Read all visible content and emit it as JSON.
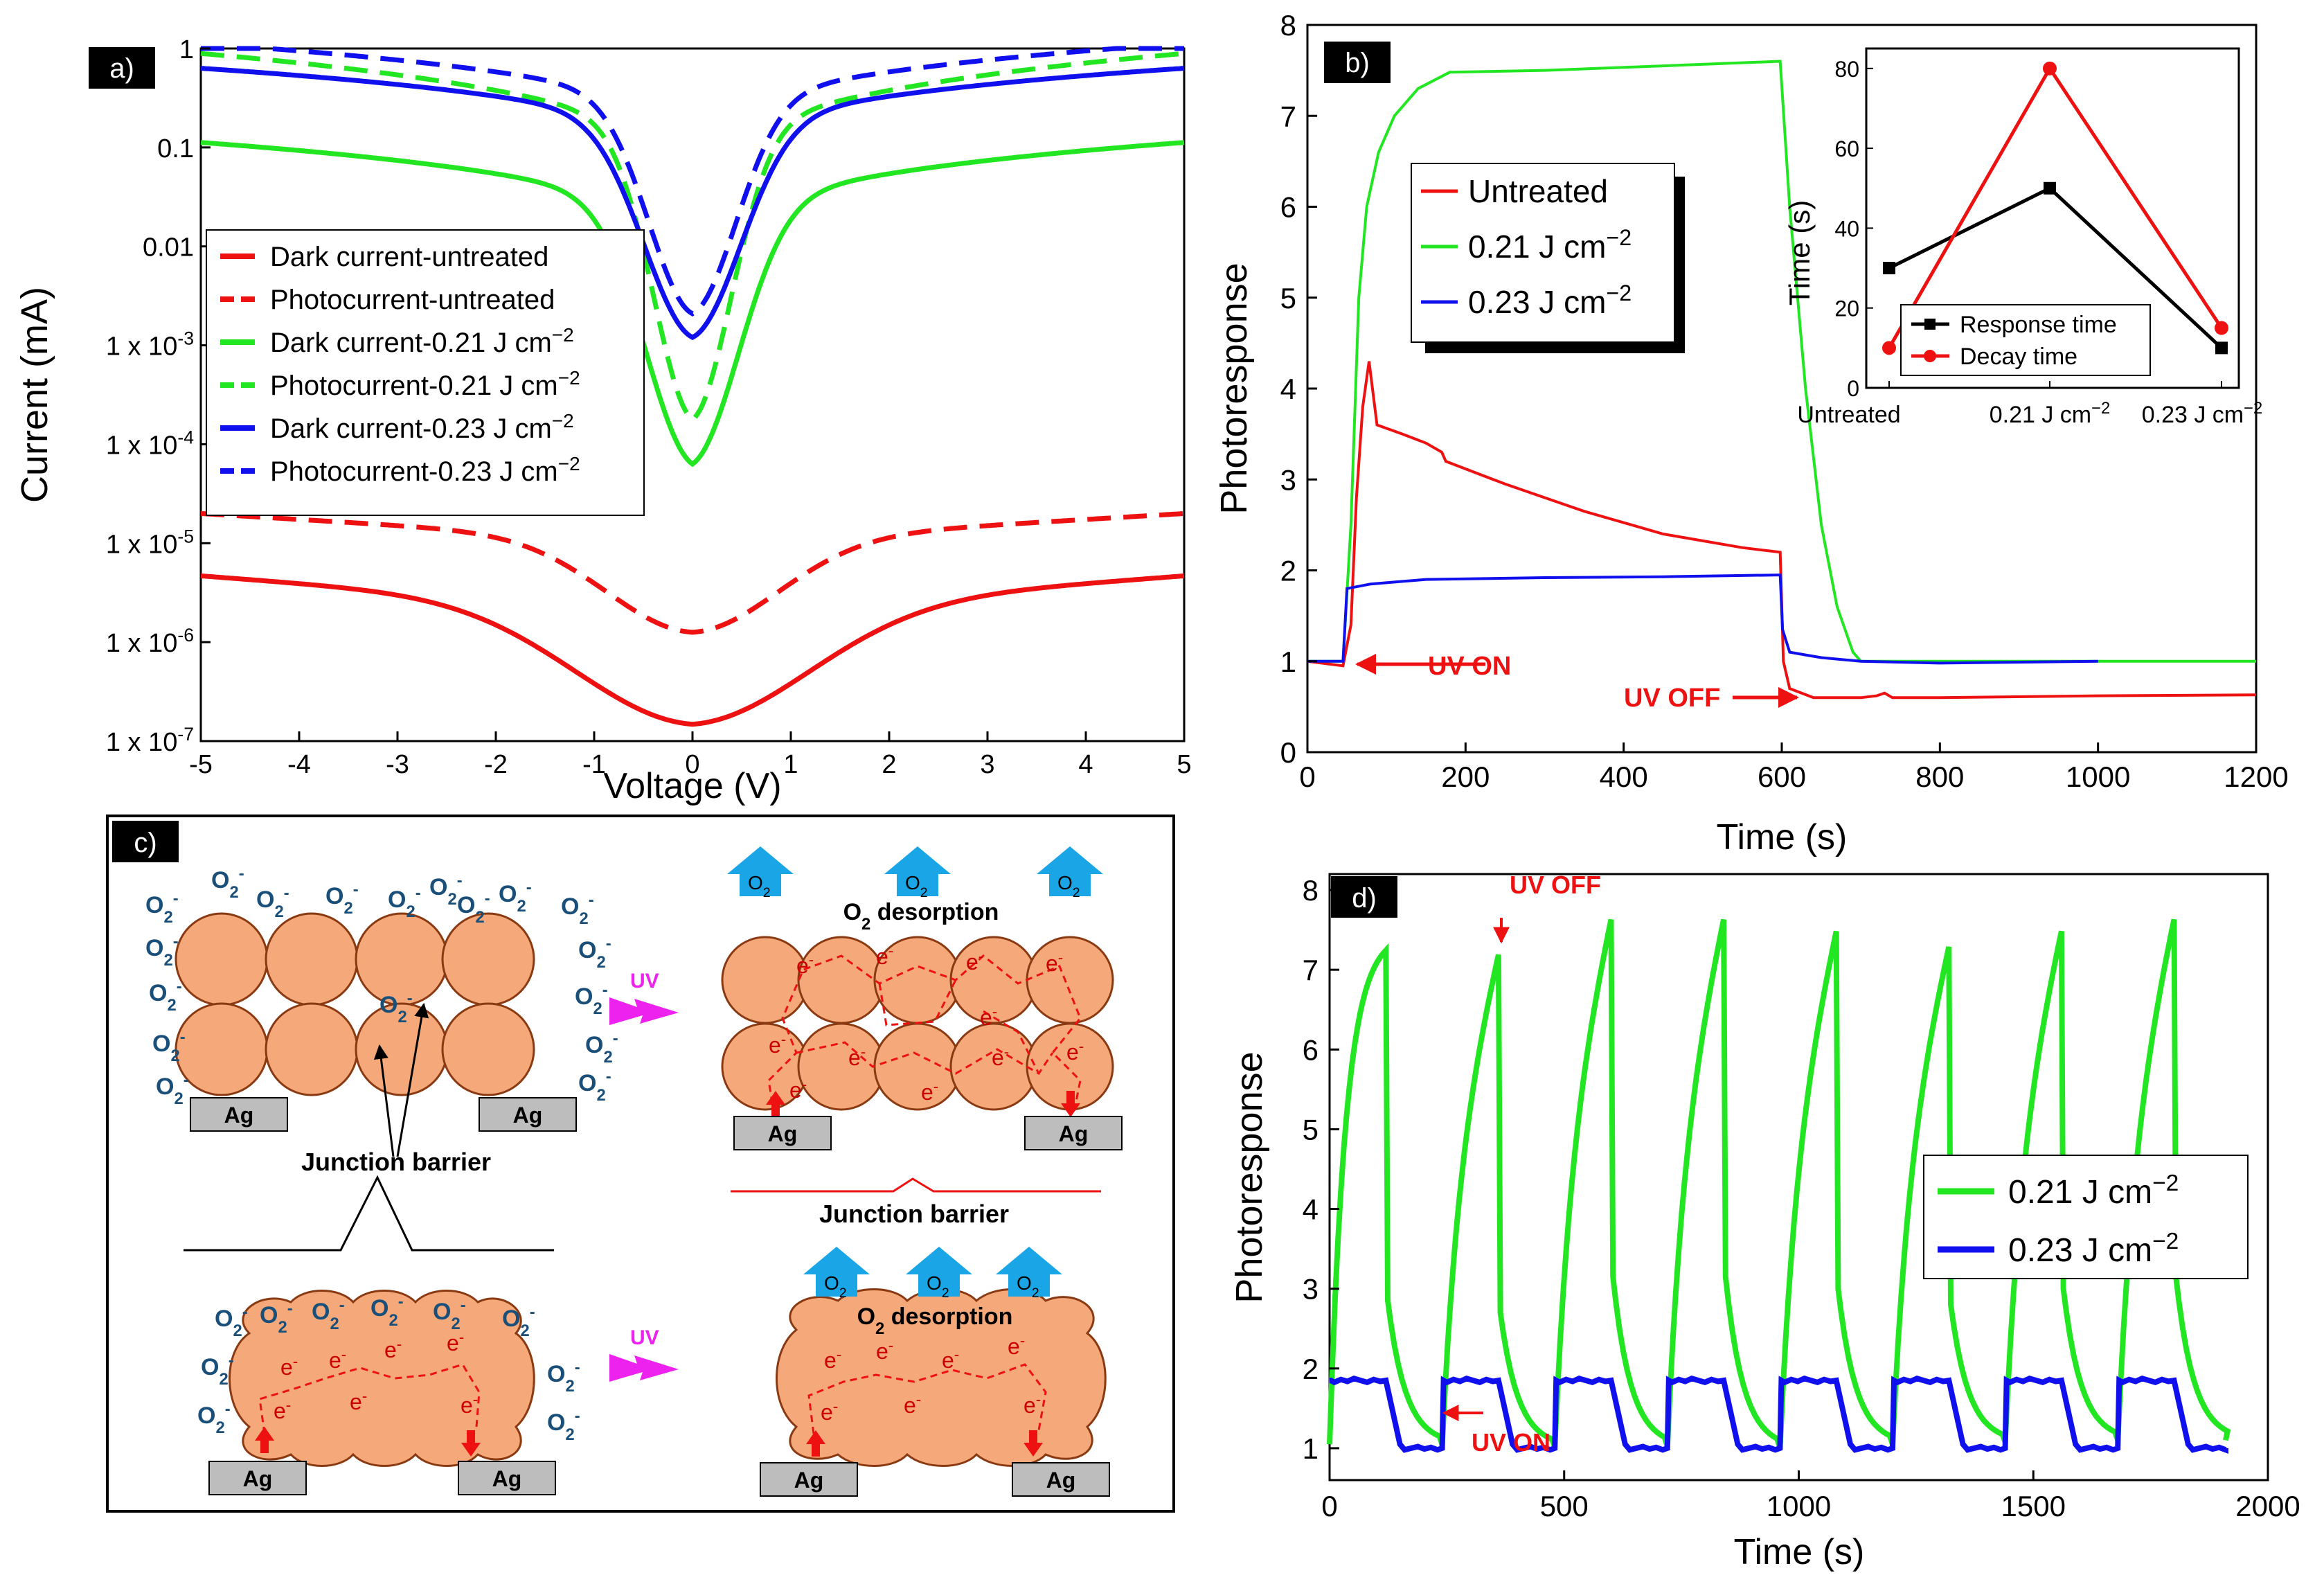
{
  "colors": {
    "red": "#ee1111",
    "green": "#22e622",
    "blue": "#1010ee",
    "black": "#000000",
    "grain": "#f5a97a",
    "grain_stroke": "#8a3a12",
    "oxygen": "#1a4f7a",
    "arrow_blue": "#1aa6e6",
    "uv": "#ee22ee",
    "electrode": "#bdbdbd"
  },
  "chart_data": [
    {
      "id": "a",
      "panel_label": "a)",
      "type": "line",
      "xlabel": "Voltage (V)",
      "ylabel": "Current (mA)",
      "xlim": [
        -5,
        5
      ],
      "ylim_log10": [
        -7,
        0
      ],
      "yscale": "log",
      "x_ticks": [
        -5,
        -4,
        -3,
        -2,
        -1,
        0,
        1,
        2,
        3,
        4,
        5
      ],
      "x_tick_labels": [
        "-5",
        "-4",
        "-3",
        "-2",
        "-1",
        "0",
        "1",
        "2",
        "3",
        "4",
        "5"
      ],
      "y_tick_labels": [
        {
          "exp": 0,
          "label": "1"
        },
        {
          "exp": -1,
          "label": "0.1"
        },
        {
          "exp": -2,
          "label": "0.01"
        },
        {
          "exp": -3,
          "base": "1 x 10",
          "sup": "-3"
        },
        {
          "exp": -4,
          "base": "1 x 10",
          "sup": "-4"
        },
        {
          "exp": -5,
          "base": "1 x 10",
          "sup": "-5"
        },
        {
          "exp": -6,
          "base": "1 x 10",
          "sup": "-6"
        },
        {
          "exp": -7,
          "base": "1 x 10",
          "sup": "-7"
        }
      ],
      "series": [
        {
          "name": "Dark current-untreated",
          "sup": "",
          "color": "red",
          "dash": false,
          "min_log": -6.83,
          "max_log": -5.33,
          "width": 0.75,
          "k": 0.55,
          "shape": "smooth"
        },
        {
          "name": "Photocurrent-untreated",
          "sup": "",
          "color": "red",
          "dash": true,
          "min_log": -5.9,
          "max_log": -4.7,
          "width": 0.55,
          "k": 0.5,
          "shape": "smooth"
        },
        {
          "name": "Dark current-0.21 J cm",
          "sup": "−2",
          "color": "green",
          "dash": false,
          "min_log": -4.2,
          "max_log": -0.95,
          "width": 0.48,
          "k": 1.6,
          "shape": "steep"
        },
        {
          "name": "Photocurrent-0.21 J cm",
          "sup": "−2",
          "color": "green",
          "dash": true,
          "min_log": -3.75,
          "max_log": -0.05,
          "width": 0.4,
          "k": 1.35,
          "shape": "steep"
        },
        {
          "name": "Dark current-0.23 J cm",
          "sup": "−2",
          "color": "blue",
          "dash": false,
          "min_log": -2.92,
          "max_log": -0.2,
          "width": 0.5,
          "k": 1.2,
          "shape": "steep"
        },
        {
          "name": "Photocurrent-0.23 J cm",
          "sup": "−2",
          "color": "blue",
          "dash": true,
          "min_log": -2.68,
          "max_log": 0.05,
          "width": 0.45,
          "k": 1.15,
          "shape": "steep"
        }
      ]
    },
    {
      "id": "b",
      "panel_label": "b)",
      "type": "line",
      "xlabel": "Time (s)",
      "ylabel": "Photoresponse",
      "xlim": [
        0,
        1200
      ],
      "ylim": [
        0,
        8
      ],
      "x_ticks": [
        0,
        200,
        400,
        600,
        800,
        1000,
        1200
      ],
      "y_ticks": [
        0,
        1,
        2,
        3,
        4,
        5,
        6,
        7,
        8
      ],
      "annotations": [
        "UV ON",
        "UV OFF"
      ],
      "series": [
        {
          "name": "Untreated",
          "sup": "",
          "color": "red",
          "x": [
            0,
            45,
            55,
            62,
            70,
            78,
            88,
            120,
            150,
            170,
            175,
            190,
            250,
            350,
            450,
            550,
            598,
            602,
            610,
            640,
            700,
            720,
            730,
            740,
            800,
            1000,
            1200
          ],
          "y": [
            1.0,
            0.95,
            1.4,
            2.8,
            3.8,
            4.3,
            3.6,
            3.5,
            3.4,
            3.3,
            3.2,
            3.15,
            2.95,
            2.65,
            2.4,
            2.25,
            2.2,
            1.0,
            0.7,
            0.6,
            0.6,
            0.62,
            0.65,
            0.6,
            0.6,
            0.62,
            0.63
          ]
        },
        {
          "name": "0.21 J cm",
          "sup": "−2",
          "color": "green",
          "x": [
            0,
            45,
            55,
            65,
            75,
            90,
            110,
            140,
            180,
            300,
            450,
            598,
            610,
            630,
            650,
            670,
            690,
            700,
            710,
            800,
            1200
          ],
          "y": [
            1.0,
            1.0,
            2.5,
            5.0,
            6.0,
            6.6,
            7.0,
            7.3,
            7.48,
            7.5,
            7.55,
            7.6,
            6.0,
            4.0,
            2.5,
            1.6,
            1.1,
            1.0,
            1.0,
            1.0,
            1.0
          ]
        },
        {
          "name": "0.23 J cm",
          "sup": "−2",
          "color": "blue",
          "x": [
            0,
            45,
            50,
            80,
            150,
            300,
            450,
            598,
            601,
            610,
            630,
            650,
            700,
            800,
            1000
          ],
          "y": [
            1.0,
            1.0,
            1.8,
            1.85,
            1.9,
            1.92,
            1.93,
            1.95,
            1.35,
            1.1,
            1.07,
            1.04,
            1.0,
            0.98,
            1.0
          ]
        }
      ],
      "inset": {
        "type": "line",
        "ylabel": "Time (s)",
        "categories": [
          "Untreated",
          "0.21 J cm",
          "0.23 J cm"
        ],
        "category_sup": [
          "",
          "−2",
          "−2"
        ],
        "ylim": [
          0,
          85
        ],
        "y_ticks": [
          0,
          20,
          40,
          60,
          80
        ],
        "series": [
          {
            "name": "Response time",
            "color": "black",
            "marker": "square",
            "values": [
              30,
              50,
              10
            ]
          },
          {
            "name": "Decay time",
            "color": "red",
            "marker": "circle",
            "values": [
              10,
              80,
              15
            ]
          }
        ]
      }
    },
    {
      "id": "d",
      "panel_label": "d)",
      "type": "line",
      "xlabel": "Time (s)",
      "ylabel": "Photoresponse",
      "xlim": [
        0,
        2000
      ],
      "ylim": [
        0.6,
        8.2
      ],
      "x_ticks": [
        0,
        500,
        1000,
        1500,
        2000
      ],
      "y_ticks": [
        1,
        2,
        3,
        4,
        5,
        6,
        7,
        8
      ],
      "annotations": [
        "UV OFF",
        "UV ON"
      ],
      "cycle_period_s": 240,
      "cycles": 8,
      "series": [
        {
          "name": "0.21 J cm",
          "sup": "−2",
          "color": "green",
          "peaks": [
            7.45,
            7.3,
            7.75,
            7.75,
            7.6,
            7.4,
            7.6,
            7.75
          ],
          "troughs": [
            1.05,
            1.02,
            1.02,
            1.0,
            1.05,
            1.08,
            1.1,
            1.1
          ]
        },
        {
          "name": "0.23 J cm",
          "sup": "−2",
          "color": "blue",
          "on_level": 1.85,
          "off_level": 1.0
        }
      ]
    }
  ],
  "schematic": {
    "panel_label": "c)",
    "oxygen": "O",
    "oxygen_sub": "2",
    "oxygen_sup": "-",
    "electron": "e",
    "electron_sup": "-",
    "electrode": "Ag",
    "uv_label": "UV",
    "desorption": "O",
    "desorption_sub": "2",
    "desorption_rest": " desorption",
    "junction_barrier": "Junction barrier"
  }
}
